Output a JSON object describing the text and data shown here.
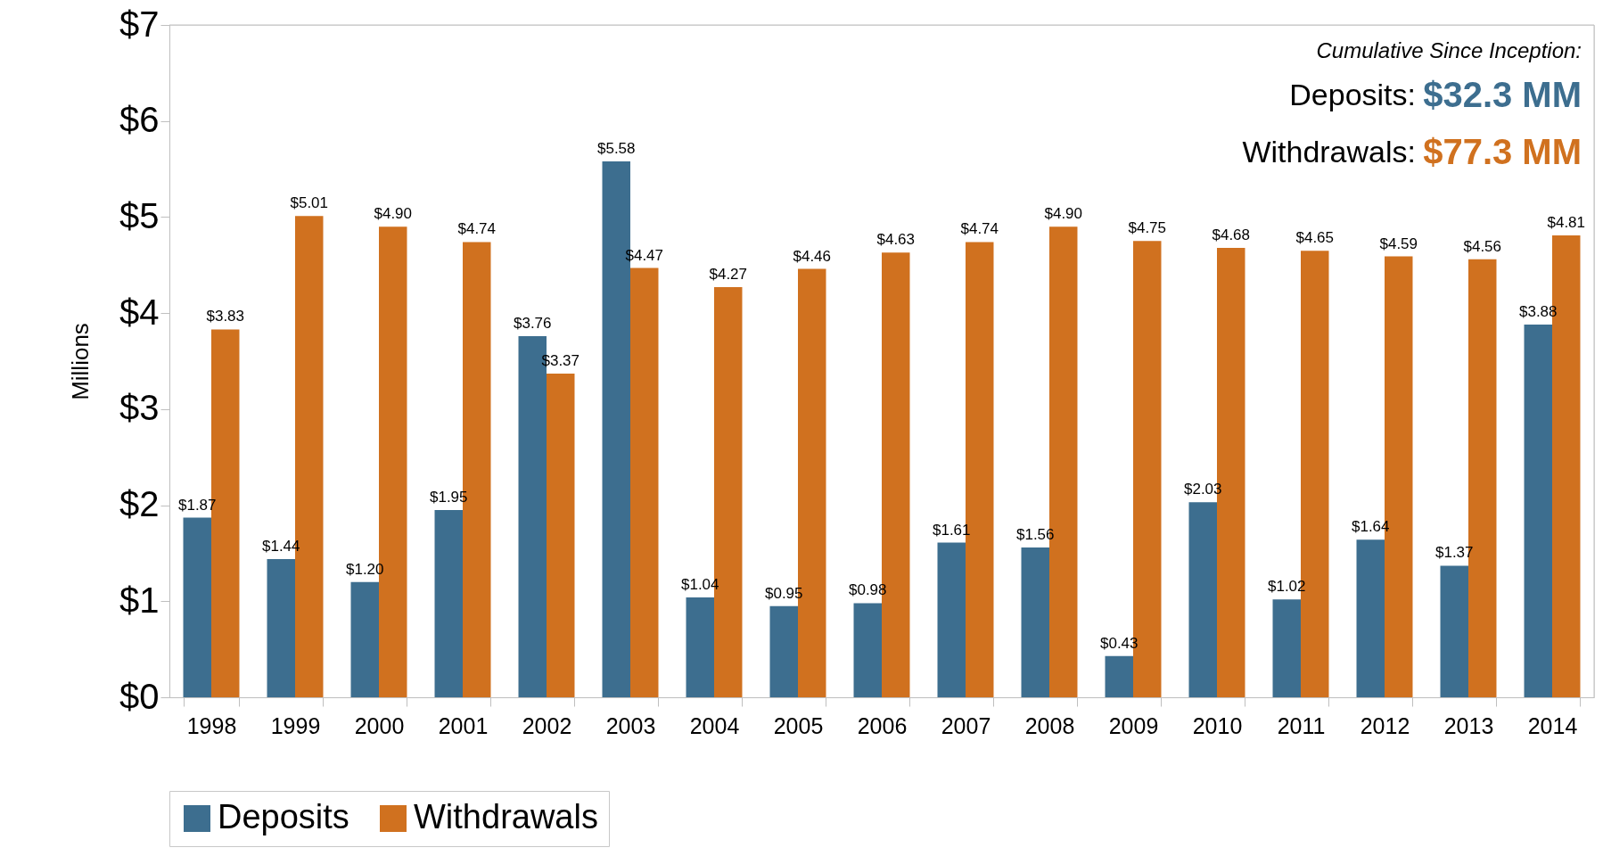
{
  "chart_data": {
    "type": "bar",
    "ylabel": "Millions",
    "categories": [
      "1998",
      "1999",
      "2000",
      "2001",
      "2002",
      "2003",
      "2004",
      "2005",
      "2006",
      "2007",
      "2008",
      "2009",
      "2010",
      "2011",
      "2012",
      "2013",
      "2014"
    ],
    "series": [
      {
        "name": "Deposits",
        "color": "#3d6e8f",
        "values": [
          1.87,
          1.44,
          1.2,
          1.95,
          3.76,
          5.58,
          1.04,
          0.95,
          0.98,
          1.61,
          1.56,
          0.43,
          2.03,
          1.02,
          1.64,
          1.37,
          3.88
        ],
        "value_labels": [
          "$1.87",
          "$1.44",
          "$1.20",
          "$1.95",
          "$3.76",
          "$5.58",
          "$1.04",
          "$0.95",
          "$0.98",
          "$1.61",
          "$1.56",
          "$0.43",
          "$2.03",
          "$1.02",
          "$1.64",
          "$1.37",
          "$3.88"
        ]
      },
      {
        "name": "Withdrawals",
        "color": "#d0711f",
        "values": [
          3.83,
          5.01,
          4.9,
          4.74,
          3.37,
          4.47,
          4.27,
          4.46,
          4.63,
          4.74,
          4.9,
          4.75,
          4.68,
          4.65,
          4.59,
          4.56,
          4.81
        ],
        "value_labels": [
          "$3.83",
          "$5.01",
          "$4.90",
          "$4.74",
          "$3.37",
          "$4.47",
          "$4.27",
          "$4.46",
          "$4.63",
          "$4.74",
          "$4.90",
          "$4.75",
          "$4.68",
          "$4.65",
          "$4.59",
          "$4.56",
          "$4.81"
        ]
      }
    ],
    "ylim": [
      0,
      7
    ],
    "yticks": [
      {
        "value": 0,
        "label": "$0"
      },
      {
        "value": 1,
        "label": "$1"
      },
      {
        "value": 2,
        "label": "$2"
      },
      {
        "value": 3,
        "label": "$3"
      },
      {
        "value": 4,
        "label": "$4"
      },
      {
        "value": 5,
        "label": "$5"
      },
      {
        "value": 6,
        "label": "$6"
      },
      {
        "value": 7,
        "label": "$7"
      }
    ],
    "grid": false,
    "legend": "bottom",
    "annotations": [
      "Cumulative Since Inception:",
      "Deposits:",
      "$32.3 MM",
      "Withdrawals:",
      "$77.3 MM"
    ]
  }
}
